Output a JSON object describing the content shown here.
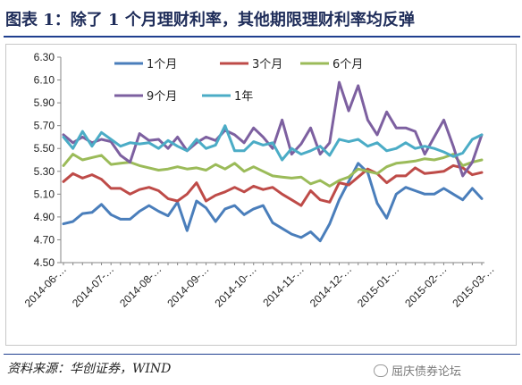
{
  "header": {
    "title": "图表 1：除了 1 个月理财利率，其他期限理财利率均反弹"
  },
  "footer": {
    "source": "资料来源：华创证券，WIND",
    "brand": "屈庆债券论坛",
    "brand_icon": "wechat-icon"
  },
  "chart_data": {
    "type": "line",
    "title": "",
    "xlabel": "",
    "ylabel": "",
    "ylim": [
      4.5,
      6.3
    ],
    "yticks": [
      4.5,
      4.7,
      4.9,
      5.1,
      5.3,
      5.5,
      5.7,
      5.9,
      6.1,
      6.3
    ],
    "ytick_labels": [
      "4.50",
      "4.70",
      "4.90",
      "5.10",
      "5.30",
      "5.50",
      "5.70",
      "5.90",
      "6.10",
      "6.30"
    ],
    "x_tick_labels": [
      "2014-06-…",
      "2014-07-…",
      "2014-08-…",
      "2014-09-…",
      "2014-10-…",
      "2014-11-…",
      "2014-12-…",
      "2015-01-…",
      "2015-02-…",
      "2015-03-…"
    ],
    "x_tick_index": [
      0,
      5,
      10,
      15,
      20,
      25,
      30,
      35,
      40,
      45
    ],
    "grid": false,
    "legend": "top",
    "series": [
      {
        "name": "1个月",
        "color": "#4a7ebb",
        "values": [
          4.84,
          4.86,
          4.93,
          4.94,
          5.01,
          4.92,
          4.88,
          4.88,
          4.95,
          5.0,
          4.95,
          4.91,
          5.03,
          4.78,
          5.04,
          4.98,
          4.86,
          4.97,
          5.0,
          4.92,
          4.97,
          5.0,
          4.85,
          4.8,
          4.75,
          4.72,
          4.77,
          4.69,
          4.84,
          5.05,
          5.21,
          5.37,
          5.29,
          5.02,
          4.89,
          5.1,
          5.16,
          5.13,
          5.1,
          5.1,
          5.15,
          5.1,
          5.05,
          5.15,
          5.06
        ]
      },
      {
        "name": "3个月",
        "color": "#be4b48",
        "values": [
          5.21,
          5.28,
          5.24,
          5.27,
          5.23,
          5.15,
          5.15,
          5.1,
          5.14,
          5.16,
          5.13,
          5.06,
          5.04,
          5.1,
          5.2,
          5.04,
          5.09,
          5.12,
          5.16,
          5.12,
          5.17,
          5.14,
          5.16,
          5.1,
          5.05,
          5.0,
          5.13,
          5.05,
          5.03,
          5.2,
          5.18,
          5.25,
          5.32,
          5.28,
          5.2,
          5.26,
          5.26,
          5.33,
          5.28,
          5.29,
          5.3,
          5.35,
          5.33,
          5.27,
          5.29
        ]
      },
      {
        "name": "6个月",
        "color": "#9bbb59",
        "values": [
          5.35,
          5.45,
          5.4,
          5.42,
          5.44,
          5.36,
          5.37,
          5.38,
          5.35,
          5.33,
          5.31,
          5.32,
          5.34,
          5.32,
          5.33,
          5.31,
          5.36,
          5.32,
          5.37,
          5.3,
          5.34,
          5.3,
          5.26,
          5.25,
          5.24,
          5.25,
          5.19,
          5.22,
          5.17,
          5.22,
          5.25,
          5.32,
          5.3,
          5.28,
          5.34,
          5.37,
          5.38,
          5.39,
          5.41,
          5.4,
          5.42,
          5.45,
          5.35,
          5.38,
          5.4
        ]
      },
      {
        "name": "9个月",
        "color": "#7d60a0",
        "values": [
          5.62,
          5.55,
          5.6,
          5.55,
          5.58,
          5.56,
          5.44,
          5.38,
          5.63,
          5.57,
          5.58,
          5.5,
          5.6,
          5.48,
          5.55,
          5.6,
          5.57,
          5.66,
          5.62,
          5.55,
          5.68,
          5.6,
          5.5,
          5.75,
          5.45,
          5.54,
          5.68,
          5.45,
          5.55,
          6.08,
          5.83,
          6.05,
          5.75,
          5.62,
          5.82,
          5.68,
          5.68,
          5.65,
          5.45,
          5.6,
          5.75,
          5.52,
          5.26,
          5.38,
          5.62
        ]
      },
      {
        "name": "1年",
        "color": "#4bacc6",
        "values": [
          5.6,
          5.5,
          5.65,
          5.52,
          5.64,
          5.58,
          5.52,
          5.55,
          5.54,
          5.55,
          5.5,
          5.57,
          5.52,
          5.48,
          5.58,
          5.5,
          5.53,
          5.7,
          5.48,
          5.48,
          5.56,
          5.53,
          5.55,
          5.4,
          5.5,
          5.45,
          5.48,
          5.52,
          5.44,
          5.58,
          5.56,
          5.58,
          5.52,
          5.55,
          5.48,
          5.5,
          5.55,
          5.5,
          5.52,
          5.5,
          5.47,
          5.43,
          5.46,
          5.58,
          5.62
        ]
      }
    ]
  }
}
